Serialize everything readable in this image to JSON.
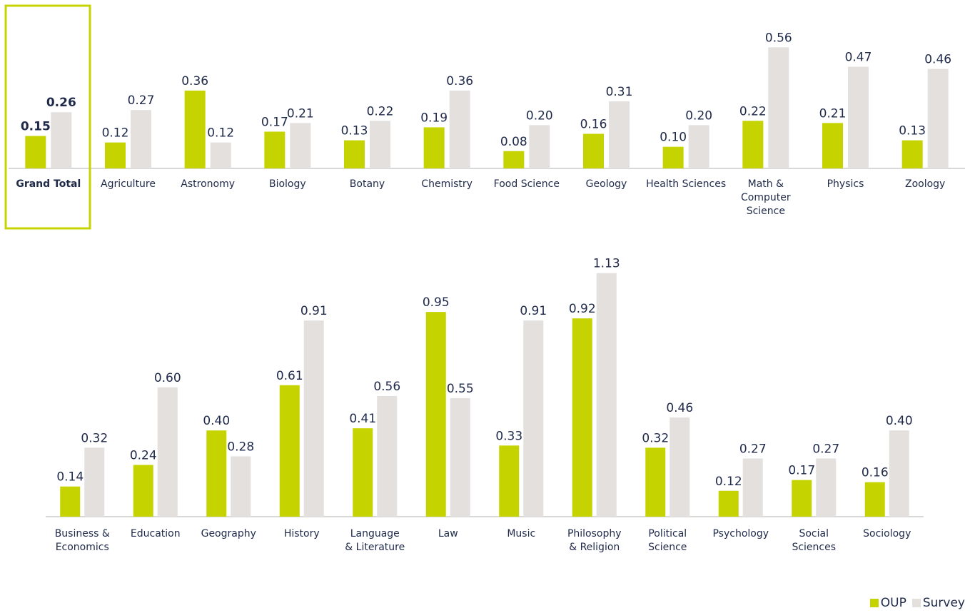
{
  "colors": {
    "oup": "#c5d400",
    "survey": "#e3e0de",
    "text": "#1f2a4a",
    "highlight": "#c5d400",
    "axis": "#b0b0b0"
  },
  "legend": {
    "oup": "OUP",
    "survey": "Survey"
  },
  "chart_data": [
    {
      "type": "bar",
      "ylim": [
        0,
        0.6
      ],
      "highlight_category_index": 0,
      "categories": [
        "Grand Total",
        "Agriculture",
        "Astronomy",
        "Biology",
        "Botany",
        "Chemistry",
        "Food Science",
        "Geology",
        "Health Sciences",
        "Math & Computer Science",
        "Physics",
        "Zoology"
      ],
      "category_lines": [
        [
          "Grand Total"
        ],
        [
          "Agriculture"
        ],
        [
          "Astronomy"
        ],
        [
          "Biology"
        ],
        [
          "Botany"
        ],
        [
          "Chemistry"
        ],
        [
          "Food Science"
        ],
        [
          "Geology"
        ],
        [
          "Health Sciences"
        ],
        [
          "Math &",
          "Computer",
          "Science"
        ],
        [
          "Physics"
        ],
        [
          "Zoology"
        ]
      ],
      "series": [
        {
          "name": "OUP",
          "values": [
            0.15,
            0.12,
            0.36,
            0.17,
            0.13,
            0.19,
            0.08,
            0.16,
            0.1,
            0.22,
            0.21,
            0.13
          ]
        },
        {
          "name": "Survey",
          "values": [
            0.26,
            0.27,
            0.12,
            0.21,
            0.22,
            0.36,
            0.2,
            0.31,
            0.2,
            0.56,
            0.47,
            0.46
          ]
        }
      ]
    },
    {
      "type": "bar",
      "ylim": [
        0,
        1.2
      ],
      "categories": [
        "Business & Economics",
        "Education",
        "Geography",
        "History",
        "Language & Literature",
        "Law",
        "Music",
        "Philosophy & Religion",
        "Political Science",
        "Psychology",
        "Social Sciences",
        "Sociology"
      ],
      "category_lines": [
        [
          "Business &",
          "Economics"
        ],
        [
          "Education"
        ],
        [
          "Geography"
        ],
        [
          "History"
        ],
        [
          "Language",
          "& Literature"
        ],
        [
          "Law"
        ],
        [
          "Music"
        ],
        [
          "Philosophy",
          "& Religion"
        ],
        [
          "Political",
          "Science"
        ],
        [
          "Psychology"
        ],
        [
          "Social",
          "Sciences"
        ],
        [
          "Sociology"
        ]
      ],
      "series": [
        {
          "name": "OUP",
          "values": [
            0.14,
            0.24,
            0.4,
            0.61,
            0.41,
            0.95,
            0.33,
            0.92,
            0.32,
            0.12,
            0.17,
            0.16
          ]
        },
        {
          "name": "Survey",
          "values": [
            0.32,
            0.6,
            0.28,
            0.91,
            0.56,
            0.55,
            0.91,
            1.13,
            0.46,
            0.27,
            0.27,
            0.4
          ]
        }
      ]
    }
  ]
}
